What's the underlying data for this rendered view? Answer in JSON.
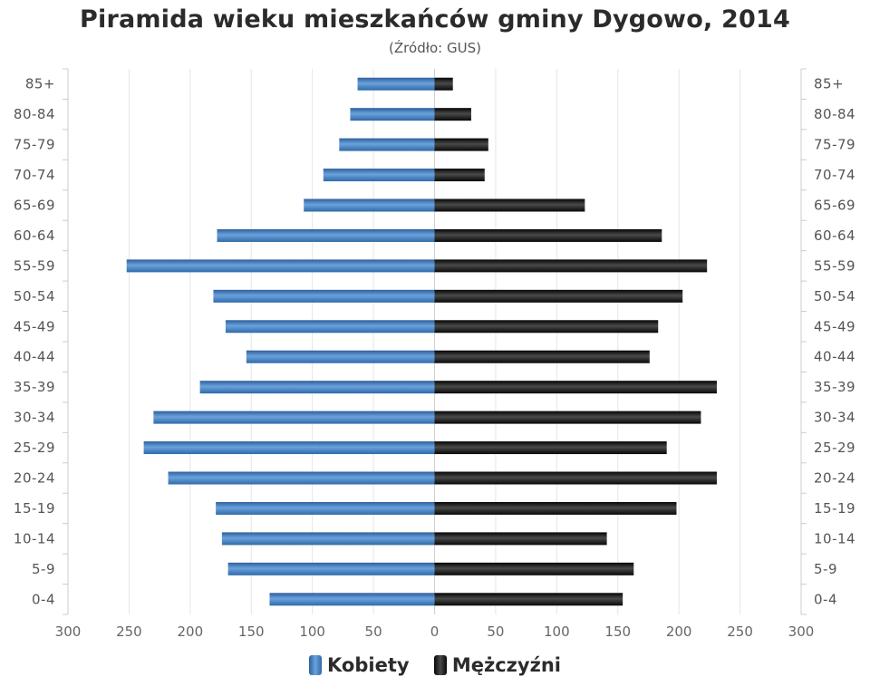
{
  "chart_data": {
    "type": "bar",
    "title": "Piramida wieku mieszkańców gminy Dygowo, 2014",
    "subtitle": "(Źródło: GUS)",
    "categories": [
      "85+",
      "80-84",
      "75-79",
      "70-74",
      "65-69",
      "60-64",
      "55-59",
      "50-54",
      "45-49",
      "40-44",
      "35-39",
      "30-34",
      "25-29",
      "20-24",
      "15-19",
      "10-14",
      "5-9",
      "0-4"
    ],
    "series": [
      {
        "name": "Kobiety",
        "values": [
          63,
          69,
          78,
          91,
          107,
          178,
          252,
          181,
          171,
          154,
          192,
          230,
          238,
          218,
          179,
          174,
          169,
          135
        ]
      },
      {
        "name": "Mężczyźni",
        "values": [
          15,
          30,
          44,
          41,
          123,
          186,
          223,
          203,
          183,
          176,
          231,
          218,
          190,
          231,
          198,
          141,
          163,
          154
        ]
      }
    ],
    "x_ticks": [
      "300",
      "250",
      "200",
      "150",
      "100",
      "50",
      "0",
      "50",
      "100",
      "150",
      "200",
      "250",
      "300"
    ],
    "xlim": [
      -300,
      300
    ],
    "grid": true,
    "legend": "bottom-center",
    "colors": {
      "Kobiety": "#4a84c4",
      "Mężczyźni": "#1c1c1c"
    }
  }
}
